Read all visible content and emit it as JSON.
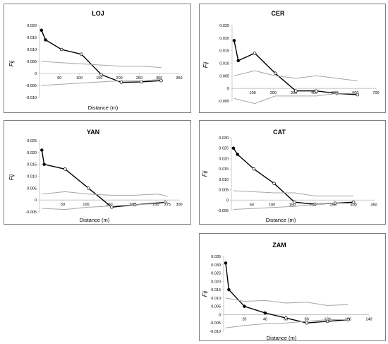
{
  "colors": {
    "observed": "#000000",
    "envelope": "#a6a6a6",
    "frame": "#7f7f7f"
  },
  "chart_data": [
    {
      "type": "line",
      "title": "LOJ",
      "xlabel": "Distance (m)",
      "ylabel": "Fij",
      "xlim": [
        0,
        350
      ],
      "ylim": [
        -0.01,
        0.02
      ],
      "xticks": [
        50,
        100,
        150,
        200,
        250,
        300,
        350
      ],
      "yticks": [
        -0.01,
        -0.005,
        0,
        0.005,
        0.01,
        0.015,
        0.02
      ],
      "ytick_labels": [
        "-0.010",
        "-0.005",
        "0",
        "0.005",
        "0.010",
        "0.015",
        "0.020"
      ],
      "series": [
        {
          "role": "observed",
          "x": [
            5,
            15,
            55,
            105,
            155,
            205,
            255,
            305
          ],
          "y": [
            0.018,
            0.014,
            0.01,
            0.008,
            -0.0005,
            -0.0037,
            -0.0035,
            -0.003
          ],
          "filled": [
            true,
            true,
            false,
            false,
            false,
            false,
            false,
            false
          ]
        },
        {
          "role": "upper",
          "x": [
            5,
            55,
            105,
            155,
            205,
            255,
            305
          ],
          "y": [
            0.005,
            0.0045,
            0.004,
            0.0035,
            0.003,
            0.003,
            0.0025
          ]
        },
        {
          "role": "lower",
          "x": [
            5,
            55,
            105,
            155,
            205,
            255,
            305
          ],
          "y": [
            -0.005,
            -0.0045,
            -0.004,
            -0.0035,
            -0.003,
            -0.003,
            -0.0025
          ]
        }
      ]
    },
    {
      "type": "line",
      "title": "CER",
      "xlabel": "",
      "ylabel": "Fij",
      "xlim": [
        0,
        700
      ],
      "ylim": [
        -0.005,
        0.025
      ],
      "xticks": [
        100,
        200,
        300,
        400,
        500,
        600,
        700
      ],
      "yticks": [
        -0.005,
        0,
        0.005,
        0.01,
        0.015,
        0.02,
        0.025
      ],
      "ytick_labels": [
        "-0.005",
        "0",
        "0.005",
        "0.010",
        "0.015",
        "0.020",
        "0.025"
      ],
      "series": [
        {
          "role": "observed",
          "x": [
            10,
            30,
            110,
            210,
            310,
            410,
            510,
            610
          ],
          "y": [
            0.019,
            0.011,
            0.014,
            0.006,
            -0.001,
            -0.001,
            -0.002,
            -0.0025
          ],
          "filled": [
            true,
            true,
            false,
            false,
            false,
            false,
            false,
            false
          ]
        },
        {
          "role": "upper",
          "x": [
            10,
            110,
            210,
            310,
            410,
            510,
            610
          ],
          "y": [
            0.005,
            0.007,
            0.005,
            0.004,
            0.005,
            0.004,
            0.003
          ]
        },
        {
          "role": "lower",
          "x": [
            10,
            110,
            210,
            310,
            410,
            510,
            610
          ],
          "y": [
            -0.004,
            -0.006,
            -0.003,
            -0.003,
            -0.003,
            -0.002,
            -0.002
          ]
        }
      ]
    },
    {
      "type": "line",
      "title": "YAN",
      "xlabel": "Distance (m)",
      "ylabel": "Fij",
      "xlim": [
        0,
        300
      ],
      "ylim": [
        -0.005,
        0.025
      ],
      "xticks": [
        50,
        100,
        150,
        200,
        250,
        275,
        300
      ],
      "yticks": [
        -0.005,
        0,
        0.005,
        0.01,
        0.015,
        0.02,
        0.025
      ],
      "ytick_labels": [
        "-0.005",
        "0",
        "0.005",
        "0.010",
        "0.015",
        "0.020",
        "0.025"
      ],
      "series": [
        {
          "role": "observed",
          "x": [
            5,
            10,
            55,
            105,
            155,
            205,
            270
          ],
          "y": [
            0.021,
            0.015,
            0.013,
            0.005,
            -0.003,
            -0.002,
            -0.001
          ],
          "filled": [
            true,
            true,
            false,
            false,
            false,
            false,
            false
          ]
        },
        {
          "role": "upper",
          "x": [
            5,
            55,
            105,
            155,
            205,
            255,
            275
          ],
          "y": [
            0.0025,
            0.0035,
            0.0025,
            0.002,
            0.002,
            0.0025,
            0.0015
          ]
        },
        {
          "role": "lower",
          "x": [
            5,
            55,
            105,
            155,
            205,
            255,
            275
          ],
          "y": [
            -0.0035,
            -0.004,
            -0.003,
            -0.0025,
            -0.002,
            -0.0015,
            -0.001
          ]
        }
      ]
    },
    {
      "type": "line",
      "title": "CAT",
      "xlabel": "Distance (m)",
      "ylabel": "Fij",
      "xlim": [
        0,
        350
      ],
      "ylim": [
        -0.005,
        0.03
      ],
      "xticks": [
        50,
        100,
        150,
        200,
        250,
        300,
        350
      ],
      "yticks": [
        -0.005,
        0,
        0.005,
        0.01,
        0.015,
        0.02,
        0.025,
        0.03
      ],
      "ytick_labels": [
        "-0.005",
        "0",
        "0.005",
        "0.010",
        "0.015",
        "0.020",
        "0.025",
        "0.030"
      ],
      "series": [
        {
          "role": "observed",
          "x": [
            5,
            15,
            55,
            105,
            155,
            205,
            255,
            300
          ],
          "y": [
            0.025,
            0.022,
            0.015,
            0.008,
            -0.001,
            -0.002,
            -0.0015,
            -0.001
          ],
          "filled": [
            true,
            true,
            false,
            false,
            false,
            false,
            false,
            false
          ]
        },
        {
          "role": "upper",
          "x": [
            5,
            55,
            105,
            155,
            205,
            255,
            300
          ],
          "y": [
            0.0045,
            0.004,
            0.0035,
            0.0035,
            0.002,
            0.002,
            0.002
          ]
        },
        {
          "role": "lower",
          "x": [
            5,
            55,
            105,
            155,
            205,
            255,
            300
          ],
          "y": [
            -0.0045,
            -0.004,
            -0.0035,
            -0.003,
            -0.002,
            -0.0015,
            -0.0015
          ]
        }
      ]
    },
    {
      "type": "line",
      "title": "ZAM",
      "xlabel": "Distance (m)",
      "ylabel": "Fij",
      "xlim": [
        0,
        140
      ],
      "ylim": [
        -0.01,
        0.035
      ],
      "xticks": [
        20,
        40,
        60,
        80,
        100,
        120,
        140
      ],
      "yticks": [
        -0.01,
        -0.005,
        0,
        0.005,
        0.01,
        0.015,
        0.02,
        0.025,
        0.03,
        0.035
      ],
      "ytick_labels": [
        "-0.010",
        "-0.005",
        "0",
        "0.005",
        "0.010",
        "0.015",
        "0.020",
        "0.025",
        "0.030",
        "0.035"
      ],
      "series": [
        {
          "role": "observed",
          "x": [
            2,
            5,
            20,
            40,
            60,
            80,
            100,
            120
          ],
          "y": [
            0.031,
            0.015,
            0.005,
            0.001,
            -0.002,
            -0.005,
            -0.004,
            -0.003
          ],
          "filled": [
            true,
            true,
            true,
            true,
            false,
            false,
            false,
            false
          ]
        },
        {
          "role": "upper",
          "x": [
            2,
            20,
            40,
            60,
            80,
            100,
            120
          ],
          "y": [
            0.01,
            0.008,
            0.0085,
            0.007,
            0.0075,
            0.0055,
            0.006
          ]
        },
        {
          "role": "lower",
          "x": [
            2,
            20,
            40,
            60,
            80,
            100,
            120
          ],
          "y": [
            -0.008,
            -0.0065,
            -0.0055,
            -0.005,
            -0.004,
            -0.003,
            -0.003
          ]
        }
      ]
    }
  ]
}
